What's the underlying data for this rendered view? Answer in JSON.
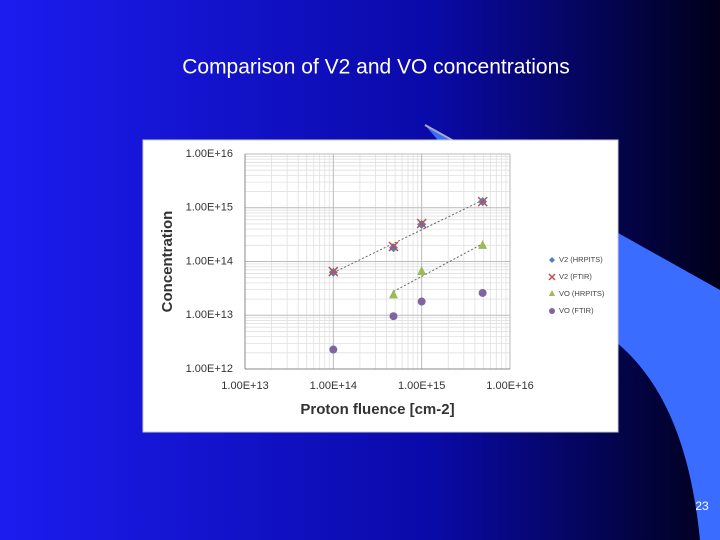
{
  "chart_data": {
    "type": "scatter",
    "title": "Comparison of V2 and VO concentrations",
    "x_label": "Proton fluence [cm-2]",
    "y_label": "Concentration",
    "log_x": true,
    "log_y": true,
    "grid": true,
    "legend": "right",
    "xlim": [
      10000000000000.0,
      1e+16
    ],
    "xticks": [
      {
        "value": 10000000000000.0,
        "label": "1.00E+13"
      },
      {
        "value": 100000000000000.0,
        "label": "1.00E+14"
      },
      {
        "value": 1000000000000000.0,
        "label": "1.00E+15"
      },
      {
        "value": 1e+16,
        "label": "1.00E+16"
      }
    ],
    "ylim": [
      1000000000000.0,
      1e+16
    ],
    "yticks": [
      {
        "value": 1000000000000.0,
        "label": "1.00E+12"
      },
      {
        "value": 10000000000000.0,
        "label": "1.00E+13"
      },
      {
        "value": 100000000000000.0,
        "label": "1.00E+14"
      },
      {
        "value": 1000000000000000.0,
        "label": "1.00E+15"
      },
      {
        "value": 1e+16,
        "label": "1.00E+16"
      }
    ],
    "series": [
      {
        "name": "V2 (HRPITS)",
        "color": "#4f81bd",
        "marker": "diamond",
        "trendline": true,
        "x": [
          100000000000000.0,
          480000000000000.0,
          1000000000000000.0,
          4900000000000000.0
        ],
        "values": [
          63000000000000.0,
          180000000000000.0,
          490000000000000.0,
          1300000000000000.0
        ]
      },
      {
        "name": "V2 (FTIR)",
        "color": "#c0504d",
        "marker": "x",
        "trendline": false,
        "x": [
          100000000000000.0,
          480000000000000.0,
          1000000000000000.0,
          4900000000000000.0
        ],
        "values": [
          65000000000000.0,
          190000000000000.0,
          510000000000000.0,
          1300000000000000.0
        ]
      },
      {
        "name": "VO (HRPITS)",
        "color": "#9bbb59",
        "marker": "triangle",
        "trendline": true,
        "x": [
          480000000000000.0,
          1000000000000000.0,
          4900000000000000.0
        ],
        "values": [
          24000000000000.0,
          65000000000000.0,
          200000000000000.0
        ]
      },
      {
        "name": "VO (FTIR)",
        "color": "#8064a2",
        "marker": "circle",
        "trendline": false,
        "x": [
          100000000000000.0,
          480000000000000.0,
          1000000000000000.0,
          4900000000000000.0
        ],
        "values": [
          2300000000000.0,
          9600000000000.0,
          18000000000000.0,
          26000000000000.0
        ]
      }
    ]
  },
  "slide": {
    "page_number": "23"
  }
}
